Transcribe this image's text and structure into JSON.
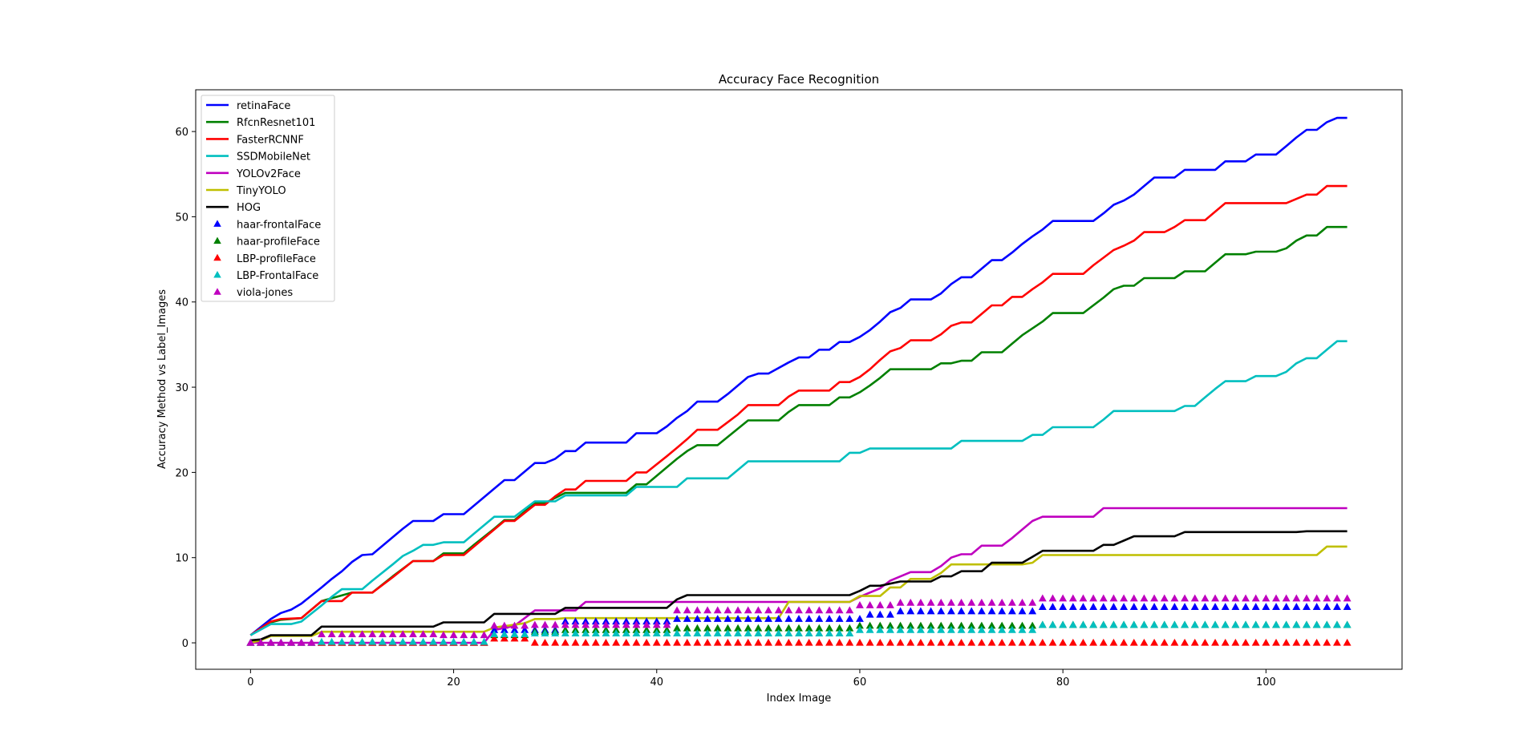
{
  "chart_data": {
    "type": "line",
    "title": "Accuracy Face Recognition",
    "xlabel": "Index Image",
    "ylabel": "Accuracy Method vs Label_Images",
    "xlim": [
      -5.4,
      113.4
    ],
    "ylim": [
      -3.1,
      64.9
    ],
    "xticks": [
      0,
      20,
      40,
      60,
      80,
      100
    ],
    "yticks": [
      0,
      10,
      20,
      30,
      40,
      50,
      60
    ],
    "grid": false,
    "legend_position": "upper-left",
    "series": [
      {
        "name": "retinaFace",
        "kind": "line",
        "color": "#0000ff",
        "x": [
          0,
          2,
          3,
          4,
          5,
          7,
          8,
          9,
          10,
          11,
          12,
          14,
          15,
          16,
          18,
          19,
          21,
          22,
          24,
          25,
          26,
          28,
          29,
          30,
          31,
          32,
          33,
          37,
          38,
          40,
          41,
          42,
          43,
          44,
          46,
          47,
          49,
          50,
          51,
          53,
          54,
          55,
          56,
          57,
          58,
          59,
          60,
          61,
          62,
          63,
          64,
          65,
          67,
          68,
          69,
          70,
          71,
          73,
          74,
          75,
          76,
          77,
          78,
          79,
          80,
          83,
          84,
          85,
          86,
          87,
          88,
          89,
          90,
          91,
          92,
          95,
          96,
          98,
          99,
          101,
          102,
          103,
          104,
          105,
          106,
          107,
          108
        ],
        "y": [
          0.9,
          2.8,
          3.5,
          3.9,
          4.6,
          6.5,
          7.5,
          8.4,
          9.5,
          10.3,
          10.4,
          12.4,
          13.4,
          14.3,
          14.3,
          15.1,
          15.1,
          16.1,
          18.1,
          19.1,
          19.1,
          21.1,
          21.1,
          21.6,
          22.5,
          22.5,
          23.5,
          23.5,
          24.6,
          24.6,
          25.4,
          26.4,
          27.2,
          28.3,
          28.3,
          29.2,
          31.2,
          31.6,
          31.6,
          32.9,
          33.5,
          33.5,
          34.4,
          34.4,
          35.3,
          35.3,
          35.9,
          36.7,
          37.7,
          38.8,
          39.3,
          40.3,
          40.3,
          41.0,
          42.1,
          42.9,
          42.9,
          44.9,
          44.9,
          45.8,
          46.8,
          47.7,
          48.5,
          49.5,
          49.5,
          49.5,
          50.4,
          51.4,
          51.9,
          52.6,
          53.6,
          54.6,
          54.6,
          54.6,
          55.5,
          55.5,
          56.5,
          56.5,
          57.3,
          57.3,
          58.3,
          59.3,
          60.2,
          60.2,
          61.1,
          61.6,
          61.6
        ]
      },
      {
        "name": "RfcnResnet101",
        "kind": "line",
        "color": "#008000",
        "x": [
          0,
          2,
          3,
          5,
          7,
          10,
          12,
          14,
          16,
          18,
          19,
          21,
          22,
          24,
          25,
          26,
          28,
          29,
          31,
          37,
          38,
          39,
          41,
          42,
          43,
          44,
          46,
          49,
          50,
          52,
          53,
          54,
          57,
          58,
          59,
          60,
          61,
          62,
          63,
          64,
          67,
          68,
          69,
          70,
          71,
          72,
          74,
          75,
          76,
          77,
          78,
          79,
          82,
          83,
          84,
          85,
          86,
          87,
          88,
          91,
          92,
          94,
          95,
          96,
          98,
          99,
          101,
          102,
          103,
          104,
          105,
          106,
          107,
          108
        ],
        "y": [
          0.9,
          2.4,
          2.7,
          2.9,
          4.9,
          5.9,
          5.9,
          7.8,
          9.6,
          9.6,
          10.5,
          10.5,
          11.5,
          13.4,
          14.4,
          14.4,
          16.4,
          16.4,
          17.6,
          17.6,
          18.6,
          18.6,
          20.6,
          21.6,
          22.5,
          23.2,
          23.2,
          26.1,
          26.1,
          26.1,
          27.1,
          27.9,
          27.9,
          28.8,
          28.8,
          29.4,
          30.2,
          31.1,
          32.1,
          32.1,
          32.1,
          32.8,
          32.8,
          33.1,
          33.1,
          34.1,
          34.1,
          35.1,
          36.1,
          36.9,
          37.7,
          38.7,
          38.7,
          39.6,
          40.5,
          41.5,
          41.9,
          41.9,
          42.8,
          42.8,
          43.6,
          43.6,
          44.6,
          45.6,
          45.6,
          45.9,
          45.9,
          46.3,
          47.2,
          47.8,
          47.8,
          48.8,
          48.8,
          48.8
        ]
      },
      {
        "name": "FasterRCNNF",
        "kind": "line",
        "color": "#ff0000",
        "x": [
          0,
          2,
          3,
          5,
          7,
          9,
          10,
          12,
          14,
          16,
          18,
          19,
          21,
          22,
          24,
          25,
          26,
          28,
          29,
          30,
          31,
          32,
          33,
          37,
          38,
          39,
          41,
          42,
          43,
          44,
          46,
          47,
          48,
          49,
          52,
          53,
          54,
          57,
          58,
          59,
          60,
          61,
          62,
          63,
          64,
          65,
          67,
          68,
          69,
          70,
          71,
          72,
          73,
          74,
          75,
          76,
          77,
          78,
          79,
          82,
          83,
          84,
          85,
          86,
          87,
          88,
          90,
          91,
          92,
          94,
          95,
          96,
          101,
          102,
          104,
          105,
          106,
          108
        ],
        "y": [
          0.9,
          2.5,
          2.8,
          2.9,
          4.9,
          4.9,
          5.9,
          5.9,
          7.7,
          9.6,
          9.6,
          10.3,
          10.3,
          11.3,
          13.3,
          14.3,
          14.3,
          16.2,
          16.2,
          17.2,
          18.0,
          18.0,
          19.0,
          19.0,
          20.0,
          20.0,
          21.9,
          22.9,
          23.9,
          25.0,
          25.0,
          25.9,
          26.8,
          27.9,
          27.9,
          28.9,
          29.6,
          29.6,
          30.6,
          30.6,
          31.2,
          32.1,
          33.2,
          34.2,
          34.6,
          35.5,
          35.5,
          36.2,
          37.2,
          37.6,
          37.6,
          38.6,
          39.6,
          39.6,
          40.6,
          40.6,
          41.5,
          42.3,
          43.3,
          43.3,
          44.3,
          45.2,
          46.1,
          46.6,
          47.2,
          48.2,
          48.2,
          48.8,
          49.6,
          49.6,
          50.6,
          51.6,
          51.6,
          51.6,
          52.6,
          52.6,
          53.6,
          53.6
        ]
      },
      {
        "name": "SSDMobileNet",
        "kind": "line",
        "color": "#00bfbf",
        "x": [
          0,
          2,
          3,
          4,
          5,
          7,
          8,
          9,
          10,
          11,
          12,
          14,
          15,
          16,
          17,
          18,
          19,
          21,
          22,
          24,
          26,
          28,
          30,
          31,
          37,
          38,
          41,
          42,
          43,
          47,
          48,
          49,
          58,
          59,
          60,
          61,
          69,
          70,
          76,
          77,
          78,
          79,
          82,
          83,
          84,
          85,
          86,
          91,
          92,
          93,
          94,
          95,
          96,
          97,
          98,
          99,
          101,
          102,
          103,
          104,
          105,
          106,
          107,
          108
        ],
        "y": [
          0.9,
          2.2,
          2.2,
          2.2,
          2.5,
          4.4,
          5.4,
          6.3,
          6.3,
          6.3,
          7.3,
          9.2,
          10.2,
          10.8,
          11.5,
          11.5,
          11.8,
          11.8,
          12.8,
          14.8,
          14.8,
          16.6,
          16.6,
          17.3,
          17.3,
          18.3,
          18.3,
          18.3,
          19.3,
          19.3,
          20.3,
          21.3,
          21.3,
          22.3,
          22.3,
          22.8,
          22.8,
          23.7,
          23.7,
          24.4,
          24.4,
          25.3,
          25.3,
          25.3,
          26.2,
          27.2,
          27.2,
          27.2,
          27.8,
          27.8,
          28.8,
          29.8,
          30.7,
          30.7,
          30.7,
          31.3,
          31.3,
          31.8,
          32.8,
          33.4,
          33.4,
          34.4,
          35.4,
          35.4
        ]
      },
      {
        "name": "YOLOv2Face",
        "kind": "line",
        "color": "#bf00bf",
        "x": [
          0,
          6,
          7,
          23,
          24,
          26,
          28,
          32,
          33,
          41,
          42,
          52,
          53,
          59,
          60,
          62,
          63,
          65,
          67,
          68,
          69,
          70,
          71,
          72,
          74,
          75,
          76,
          77,
          78,
          83,
          84,
          108
        ],
        "y": [
          0,
          0,
          0,
          0,
          1.5,
          2.0,
          3.8,
          3.8,
          4.8,
          4.8,
          4.8,
          4.8,
          4.8,
          4.8,
          5.4,
          6.4,
          7.3,
          8.3,
          8.3,
          9.0,
          10.0,
          10.4,
          10.4,
          11.4,
          11.4,
          12.3,
          13.3,
          14.3,
          14.8,
          14.8,
          15.8,
          15.8
        ]
      },
      {
        "name": "TinyYOLO",
        "kind": "line",
        "color": "#bfbf00",
        "x": [
          0,
          1,
          2,
          6,
          7,
          23,
          24,
          27,
          28,
          30,
          31,
          52,
          53,
          59,
          60,
          62,
          63,
          64,
          65,
          67,
          68,
          69,
          70,
          73,
          76,
          77,
          78,
          105,
          106,
          108
        ],
        "y": [
          0,
          0.3,
          0.8,
          0.8,
          1.3,
          1.3,
          1.8,
          2.3,
          2.8,
          2.8,
          2.9,
          2.9,
          4.8,
          4.8,
          5.5,
          5.5,
          6.5,
          6.5,
          7.5,
          7.5,
          8.2,
          9.2,
          9.2,
          9.2,
          9.2,
          9.4,
          10.3,
          10.3,
          11.3,
          11.3
        ]
      },
      {
        "name": "HOG",
        "kind": "line",
        "color": "#000000",
        "x": [
          0,
          1,
          2,
          6,
          7,
          18,
          19,
          23,
          24,
          30,
          31,
          41,
          42,
          43,
          59,
          60,
          61,
          62,
          64,
          67,
          68,
          69,
          70,
          72,
          73,
          76,
          77,
          78,
          83,
          84,
          85,
          86,
          87,
          91,
          92,
          103,
          104,
          108
        ],
        "y": [
          0.3,
          0.4,
          0.9,
          0.9,
          1.9,
          1.9,
          2.4,
          2.4,
          3.4,
          3.4,
          4.1,
          4.1,
          5.1,
          5.6,
          5.6,
          6.1,
          6.7,
          6.7,
          7.2,
          7.2,
          7.8,
          7.8,
          8.4,
          8.4,
          9.4,
          9.4,
          10.1,
          10.8,
          10.8,
          11.5,
          11.5,
          12.0,
          12.5,
          12.5,
          13.0,
          13.0,
          13.1,
          13.1
        ]
      },
      {
        "name": "haar-frontalFace",
        "kind": "marker",
        "color": "#0000ff",
        "x": [
          0,
          23,
          24,
          30,
          31,
          41,
          42,
          60,
          61,
          63,
          64,
          77,
          78,
          108
        ],
        "y": [
          0,
          0,
          1.5,
          1.5,
          2.5,
          2.5,
          2.8,
          2.8,
          3.3,
          3.3,
          3.7,
          3.7,
          4.2,
          4.2
        ]
      },
      {
        "name": "haar-profileFace",
        "kind": "marker",
        "color": "#008000",
        "x": [
          0,
          23,
          24,
          27,
          28,
          30,
          31,
          41,
          42,
          59,
          60,
          77,
          78,
          108
        ],
        "y": [
          0,
          0,
          0.9,
          0.9,
          1.3,
          1.3,
          1.5,
          1.5,
          1.7,
          1.7,
          2.0,
          2.0,
          2.1,
          2.1
        ]
      },
      {
        "name": "LBP-profileFace",
        "kind": "marker",
        "color": "#ff0000",
        "x": [
          0,
          23,
          24,
          27,
          28,
          108
        ],
        "y": [
          0,
          0,
          0.5,
          0.5,
          0,
          0
        ]
      },
      {
        "name": "LBP-FrontalFace",
        "kind": "marker",
        "color": "#00bfbf",
        "x": [
          0,
          6,
          7,
          23,
          24,
          27,
          28,
          59,
          60,
          77,
          78,
          108
        ],
        "y": [
          0,
          0,
          0.1,
          0.1,
          1.0,
          1.0,
          1.1,
          1.1,
          1.5,
          1.5,
          2.1,
          2.1
        ]
      },
      {
        "name": "viola-jones",
        "kind": "marker",
        "color": "#bf00bf",
        "x": [
          0,
          6,
          7,
          18,
          19,
          23,
          24,
          27,
          28,
          41,
          42,
          59,
          60,
          63,
          64,
          77,
          78,
          108
        ],
        "y": [
          0,
          0,
          1.0,
          1.0,
          0.9,
          0.9,
          2.0,
          2.0,
          2.1,
          2.1,
          3.8,
          3.8,
          4.4,
          4.4,
          4.7,
          4.7,
          5.2,
          5.2
        ]
      }
    ]
  }
}
